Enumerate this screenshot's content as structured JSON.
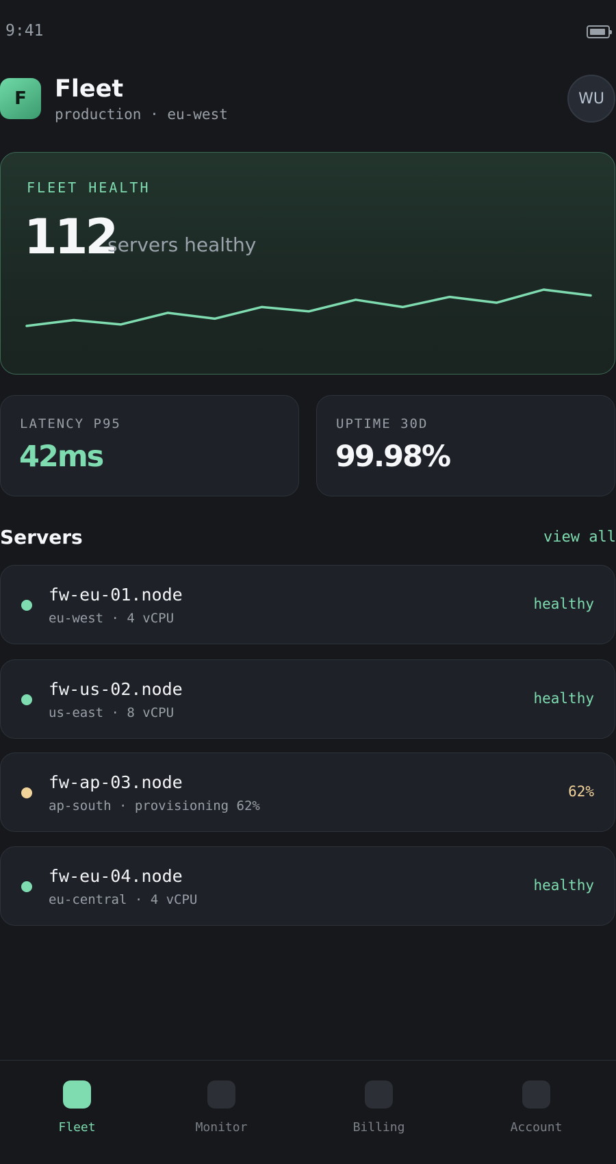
{
  "status_bar": {
    "time": "9:41",
    "battery_icon": "battery-icon"
  },
  "header": {
    "logo_letter": "F",
    "title": "Fleet",
    "subtitle": "production · eu-west",
    "avatar_initials": "WU"
  },
  "health": {
    "label": "FLEET HEALTH",
    "value": "112",
    "unit": "servers healthy",
    "sparkline": [
      0,
      4,
      1,
      9,
      5,
      13,
      10,
      18,
      13,
      20,
      16,
      25,
      21
    ]
  },
  "stats": [
    {
      "label": "LATENCY P95",
      "value": "42ms",
      "color": "#7fdcb0"
    },
    {
      "label": "UPTIME 30D",
      "value": "99.98%",
      "color": "#f5f7f9"
    }
  ],
  "servers_section": {
    "title": "Servers",
    "view_all": "view all"
  },
  "servers": [
    {
      "name": "fw-eu-01.node",
      "meta": "eu-west · 4 vCPU",
      "status": "healthy",
      "color": "#7fdcb0"
    },
    {
      "name": "fw-us-02.node",
      "meta": "us-east · 8 vCPU",
      "status": "healthy",
      "color": "#7fdcb0"
    },
    {
      "name": "fw-ap-03.node",
      "meta": "ap-south · provisioning 62%",
      "status": "62%",
      "color": "#f2d49b"
    },
    {
      "name": "fw-eu-04.node",
      "meta": "eu-central · 4 vCPU",
      "status": "healthy",
      "color": "#7fdcb0"
    }
  ],
  "nav": [
    {
      "label": "Fleet",
      "icon": "fleet-icon",
      "active": true
    },
    {
      "label": "Monitor",
      "icon": "monitor-icon",
      "active": false
    },
    {
      "label": "Billing",
      "icon": "billing-icon",
      "active": false
    },
    {
      "label": "Account",
      "icon": "account-icon",
      "active": false
    }
  ],
  "colors": {
    "accent": "#7fdcb0",
    "warning": "#f2d49b",
    "background": "#16181c",
    "card": "#1e2128"
  }
}
